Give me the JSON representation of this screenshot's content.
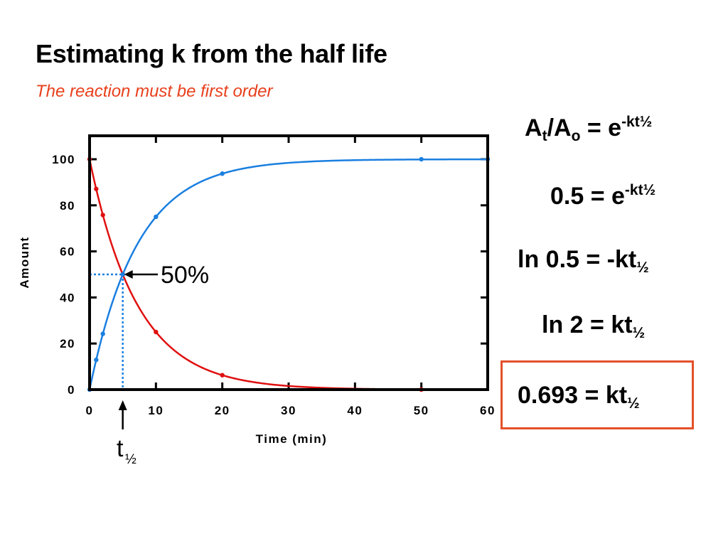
{
  "slide": {
    "title": "Estimating k from the half life",
    "subtitle": "The reaction must be first order"
  },
  "colors": {
    "subtitle": "#e8401c",
    "reactant": "#e01010",
    "product": "#1a7fe0",
    "guide": "#1a7fe0",
    "box": "#e4502a",
    "axis": "#000000"
  },
  "chart_data": {
    "type": "line",
    "xlabel": "Time  (min)",
    "ylabel": "Amount",
    "xlim": [
      0,
      60
    ],
    "ylim": [
      0,
      110
    ],
    "x_ticks": [
      0,
      10,
      20,
      30,
      40,
      50,
      60
    ],
    "y_ticks": [
      0,
      20,
      40,
      60,
      80,
      100
    ],
    "grid": false,
    "legend": "none",
    "series": [
      {
        "color": "#e01010",
        "markers": {
          "x": [
            0,
            1,
            2,
            5,
            10,
            20,
            50
          ],
          "y": [
            100,
            87.1,
            75.8,
            50,
            25,
            6.25,
            0
          ]
        }
      },
      {
        "color": "#1a7fe0",
        "markers": {
          "x": [
            0,
            1,
            2,
            5,
            10,
            20,
            50,
            60
          ],
          "y": [
            0,
            12.9,
            24.2,
            50,
            75,
            93.75,
            100,
            100
          ]
        }
      }
    ],
    "curve_model": {
      "half_life": 5,
      "initial_amount": 100
    },
    "half_life_marker": {
      "x": 5,
      "y": 50
    },
    "annotations": {
      "fifty_percent": "50%",
      "t_half_symbol": "t",
      "t_half_subscript": "½"
    }
  },
  "equations": [
    {
      "left": "A",
      "sub1": "t",
      "mid": "/A",
      "sub2": "o",
      "right": " = e",
      "sup": "-kt½"
    },
    {
      "left": "0.5 = e",
      "sup": "-kt½"
    },
    {
      "left": "ln 0.5 = -kt",
      "sub": "½"
    },
    {
      "left": "ln 2 = kt",
      "sub": "½"
    },
    {
      "left": "0.693 = kt",
      "sub": "½"
    }
  ]
}
